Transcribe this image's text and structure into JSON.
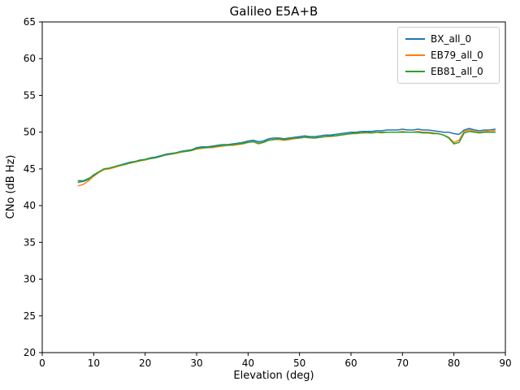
{
  "chart_data": {
    "type": "line",
    "title": "Galileo E5A+B",
    "xlabel": "Elevation (deg)",
    "ylabel": "CNo (dB Hz)",
    "xlim": [
      0,
      90
    ],
    "ylim": [
      20,
      65
    ],
    "xticks": [
      0,
      10,
      20,
      30,
      40,
      50,
      60,
      70,
      80,
      90
    ],
    "yticks": [
      20,
      25,
      30,
      35,
      40,
      45,
      50,
      55,
      60,
      65
    ],
    "grid": false,
    "legend_position": "upper right",
    "x": [
      7,
      8,
      9,
      10,
      11,
      12,
      13,
      14,
      15,
      16,
      17,
      18,
      19,
      20,
      21,
      22,
      23,
      24,
      25,
      26,
      27,
      28,
      29,
      30,
      31,
      32,
      33,
      34,
      35,
      36,
      37,
      38,
      39,
      40,
      41,
      42,
      43,
      44,
      45,
      46,
      47,
      48,
      49,
      50,
      51,
      52,
      53,
      54,
      55,
      56,
      57,
      58,
      59,
      60,
      61,
      62,
      63,
      64,
      65,
      66,
      67,
      68,
      69,
      70,
      71,
      72,
      73,
      74,
      75,
      76,
      77,
      78,
      79,
      80,
      81,
      82,
      83,
      84,
      85,
      86,
      87,
      88
    ],
    "series": [
      {
        "name": "BX_all_0",
        "color": "#1f77b4",
        "values": [
          43.2,
          43.3,
          43.6,
          44.2,
          44.6,
          45.0,
          45.1,
          45.3,
          45.5,
          45.7,
          45.9,
          46.0,
          46.2,
          46.3,
          46.5,
          46.6,
          46.8,
          47.0,
          47.1,
          47.2,
          47.4,
          47.5,
          47.6,
          47.9,
          48.0,
          48.0,
          48.1,
          48.2,
          48.3,
          48.3,
          48.4,
          48.5,
          48.6,
          48.8,
          48.9,
          48.7,
          48.8,
          49.1,
          49.2,
          49.2,
          49.1,
          49.2,
          49.3,
          49.4,
          49.5,
          49.4,
          49.4,
          49.5,
          49.6,
          49.6,
          49.7,
          49.8,
          49.9,
          50.0,
          50.0,
          50.1,
          50.1,
          50.1,
          50.2,
          50.2,
          50.3,
          50.3,
          50.3,
          50.4,
          50.3,
          50.3,
          50.4,
          50.3,
          50.3,
          50.2,
          50.1,
          50.0,
          50.0,
          49.8,
          49.7,
          50.3,
          50.5,
          50.3,
          50.2,
          50.3,
          50.3,
          50.4
        ]
      },
      {
        "name": "EB79_all_0",
        "color": "#ff7f0e",
        "values": [
          42.7,
          42.9,
          43.4,
          44.0,
          44.5,
          44.9,
          45.0,
          45.2,
          45.4,
          45.6,
          45.8,
          45.9,
          46.1,
          46.2,
          46.4,
          46.5,
          46.7,
          46.9,
          47.0,
          47.1,
          47.3,
          47.4,
          47.5,
          47.7,
          47.8,
          47.9,
          47.9,
          48.0,
          48.1,
          48.2,
          48.2,
          48.3,
          48.4,
          48.6,
          48.7,
          48.4,
          48.6,
          48.9,
          49.0,
          49.0,
          48.9,
          49.0,
          49.1,
          49.2,
          49.3,
          49.2,
          49.2,
          49.3,
          49.4,
          49.4,
          49.5,
          49.6,
          49.7,
          49.8,
          49.8,
          49.9,
          49.9,
          49.9,
          50.0,
          49.9,
          50.0,
          50.0,
          50.0,
          50.1,
          50.0,
          50.0,
          50.1,
          50.0,
          50.0,
          49.9,
          49.8,
          49.6,
          49.3,
          48.6,
          48.9,
          50.1,
          50.3,
          50.1,
          50.0,
          50.1,
          50.2,
          50.2
        ]
      },
      {
        "name": "EB81_all_0",
        "color": "#2ca02c",
        "values": [
          43.4,
          43.4,
          43.7,
          44.1,
          44.6,
          45.0,
          45.1,
          45.3,
          45.5,
          45.6,
          45.8,
          46.0,
          46.1,
          46.3,
          46.4,
          46.5,
          46.7,
          46.9,
          47.0,
          47.2,
          47.3,
          47.4,
          47.5,
          47.8,
          47.9,
          47.9,
          48.0,
          48.1,
          48.2,
          48.2,
          48.3,
          48.4,
          48.5,
          48.6,
          48.7,
          48.5,
          48.6,
          48.9,
          49.0,
          49.1,
          49.0,
          49.1,
          49.2,
          49.2,
          49.3,
          49.3,
          49.2,
          49.3,
          49.4,
          49.5,
          49.5,
          49.6,
          49.7,
          49.8,
          49.9,
          49.9,
          50.0,
          49.9,
          50.0,
          50.0,
          50.0,
          50.0,
          50.0,
          50.0,
          50.0,
          50.0,
          50.0,
          49.9,
          49.9,
          49.8,
          49.8,
          49.6,
          49.2,
          48.4,
          48.6,
          49.9,
          50.1,
          50.0,
          49.9,
          50.0,
          50.0,
          50.0
        ]
      }
    ]
  }
}
